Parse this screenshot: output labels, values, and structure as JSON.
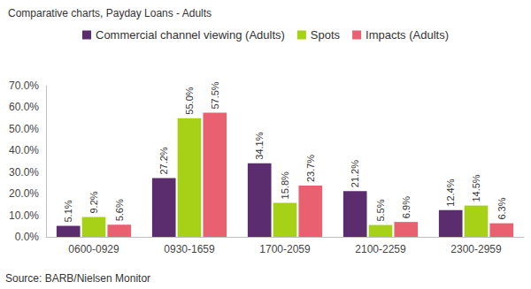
{
  "chart_data": {
    "type": "bar",
    "title": "Comparative charts, Payday Loans - Adults",
    "annotations": [
      "Source: BARB/Nielsen Monitor"
    ],
    "categories": [
      "0600-0929",
      "0930-1659",
      "1700-2059",
      "2100-2259",
      "2300-2959"
    ],
    "series": [
      {
        "name": "Commercial channel viewing (Adults)",
        "color": "#5c2d6e",
        "values": [
          5.1,
          27.2,
          34.1,
          21.2,
          12.4
        ],
        "value_labels": [
          "5.1%",
          "27.2%",
          "34.1%",
          "21.2%",
          "12.4%"
        ]
      },
      {
        "name": "Spots",
        "color": "#a6d117",
        "values": [
          9.2,
          55.0,
          15.8,
          5.5,
          14.5
        ],
        "value_labels": [
          "9.2%",
          "55.0%",
          "15.8%",
          "5.5%",
          "14.5%"
        ]
      },
      {
        "name": "Impacts (Adults)",
        "color": "#e96071",
        "values": [
          5.6,
          57.5,
          23.7,
          6.9,
          6.3
        ],
        "value_labels": [
          "5.6%",
          "57.5%",
          "23.7%",
          "6.9%",
          "6.3%"
        ]
      }
    ],
    "ylim": [
      0,
      70
    ],
    "yticks": [
      {
        "value": 0,
        "label": "0.0%"
      },
      {
        "value": 10,
        "label": "10.0%"
      },
      {
        "value": 20,
        "label": "20.0%"
      },
      {
        "value": 30,
        "label": "30.0%"
      },
      {
        "value": 40,
        "label": "40.0%"
      },
      {
        "value": 50,
        "label": "50.0%"
      },
      {
        "value": 60,
        "label": "60.0%"
      },
      {
        "value": 70,
        "label": "70.0%"
      }
    ],
    "grid": false,
    "legend": "top",
    "data_labels": true
  }
}
